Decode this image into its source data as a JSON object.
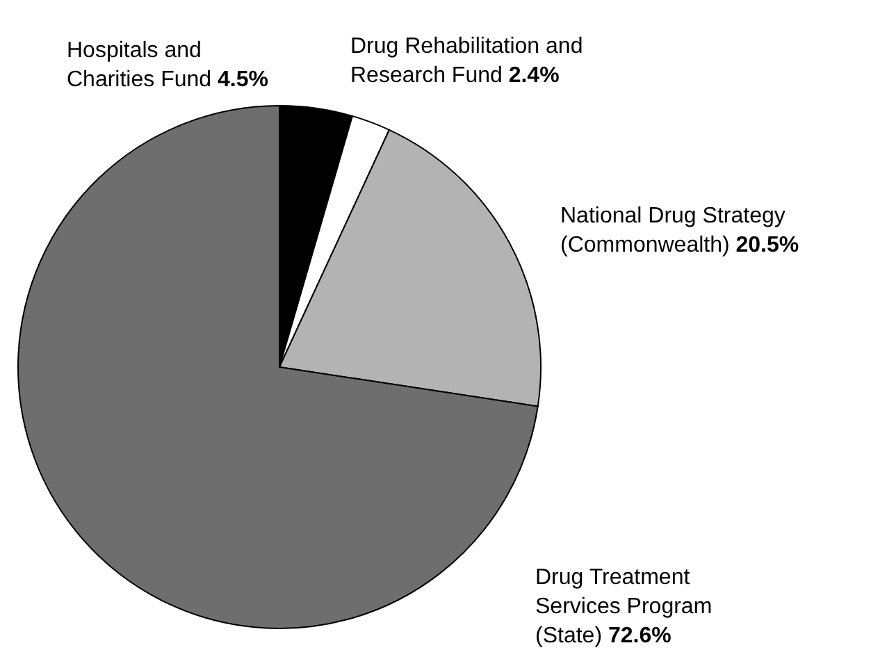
{
  "chart_data": {
    "type": "pie",
    "categories": [
      "Hospitals and Charities Fund",
      "Drug Rehabilitation and Research Fund",
      "National Drug Strategy (Commonwealth)",
      "Drug Treatment Services Program (State)"
    ],
    "values": [
      4.5,
      2.4,
      20.5,
      72.6
    ],
    "colors": [
      "#000000",
      "#ffffff",
      "#b3b3b3",
      "#6e6e6e"
    ],
    "value_labels": [
      "4.5%",
      "2.4%",
      "20.5%",
      "72.6%"
    ]
  }
}
